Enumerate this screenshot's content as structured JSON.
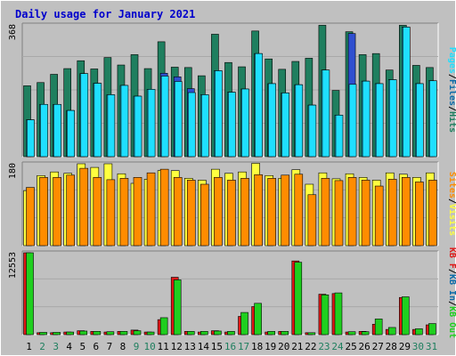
{
  "title": "Daily usage for January 2021",
  "colors": {
    "frame_bg": "#C0C0C0",
    "plot_bg": "#C0C0C0",
    "title": "#0000CC",
    "hits": "#1F7F5F",
    "files": "#1FDFFF",
    "pages": "#1FDFFF",
    "pages_dark": "#0A84B8",
    "visits": "#FFFF3F",
    "sites": "#FF8C00",
    "kb_in": "#1FCF1F",
    "kb_out": "#E01818",
    "axis_blue": "#0A6AA8",
    "axis_green": "#1F8F3F"
  },
  "chart_data": [
    {
      "type": "bar",
      "panel": "hits-files-pages",
      "ymax_label": "368",
      "ymax": 368,
      "ylabel_parts": [
        {
          "text": "Pages",
          "color": "#1FDFFF"
        },
        {
          "text": "/",
          "color": "#000000"
        },
        {
          "text": "Files",
          "color": "#0A6AA8"
        },
        {
          "text": "/",
          "color": "#000000"
        },
        {
          "text": "Hits",
          "color": "#1F7F5F"
        }
      ],
      "categories": [
        "1",
        "2",
        "3",
        "4",
        "5",
        "6",
        "7",
        "8",
        "9",
        "10",
        "11",
        "12",
        "13",
        "14",
        "15",
        "16",
        "17",
        "18",
        "19",
        "20",
        "21",
        "22",
        "23",
        "24",
        "25",
        "26",
        "27",
        "28",
        "29",
        "30",
        "31"
      ],
      "series": [
        {
          "name": "Hits",
          "values": [
            198,
            207,
            230,
            246,
            268,
            245,
            277,
            256,
            285,
            246,
            321,
            250,
            249,
            226,
            342,
            263,
            251,
            351,
            273,
            244,
            266,
            275,
            367,
            185,
            349,
            285,
            288,
            242,
            367,
            255,
            249
          ]
        },
        {
          "name": "Files",
          "values": [
            103,
            146,
            146,
            129,
            232,
            205,
            173,
            199,
            169,
            188,
            233,
            223,
            190,
            173,
            240,
            180,
            189,
            288,
            204,
            178,
            201,
            144,
            242,
            116,
            344,
            211,
            204,
            215,
            362,
            204,
            212
          ]
        },
        {
          "name": "Pages",
          "values": [
            103,
            146,
            146,
            129,
            232,
            205,
            173,
            199,
            169,
            188,
            225,
            210,
            179,
            173,
            240,
            180,
            189,
            288,
            204,
            178,
            201,
            144,
            242,
            116,
            202,
            211,
            204,
            215,
            362,
            204,
            212
          ]
        }
      ]
    },
    {
      "type": "bar",
      "panel": "visits-sites",
      "ymax_label": "180",
      "ymax": 180,
      "ylabel_parts": [
        {
          "text": "Sites",
          "color": "#FF8C00"
        },
        {
          "text": "/",
          "color": "#000000"
        },
        {
          "text": "Visits",
          "color": "#FFFF3F"
        }
      ],
      "categories": [
        "1",
        "2",
        "3",
        "4",
        "5",
        "6",
        "7",
        "8",
        "9",
        "10",
        "11",
        "12",
        "13",
        "14",
        "15",
        "16",
        "17",
        "18",
        "19",
        "20",
        "21",
        "22",
        "23",
        "24",
        "25",
        "26",
        "27",
        "28",
        "29",
        "30",
        "31"
      ],
      "series": [
        {
          "name": "Visits",
          "values": [
            121,
            154,
            162,
            159,
            180,
            172,
            180,
            158,
            137,
            146,
            165,
            165,
            148,
            144,
            168,
            159,
            162,
            181,
            154,
            148,
            167,
            135,
            160,
            147,
            158,
            150,
            144,
            160,
            157,
            150,
            160
          ]
        },
        {
          "name": "Sites",
          "values": [
            128,
            150,
            150,
            155,
            170,
            150,
            145,
            148,
            150,
            160,
            168,
            150,
            144,
            135,
            150,
            144,
            148,
            156,
            148,
            155,
            157,
            112,
            148,
            143,
            150,
            144,
            131,
            146,
            150,
            140,
            144
          ]
        }
      ]
    },
    {
      "type": "bar",
      "panel": "kbin-kbout",
      "ymax_label": "12553",
      "ymax": 12553,
      "ylabel_parts": [
        {
          "text": "KB F",
          "color": "#E01818"
        },
        {
          "text": "/",
          "color": "#000000"
        },
        {
          "text": "KB In",
          "color": "#0A6AA8"
        },
        {
          "text": "/",
          "color": "#000000"
        },
        {
          "text": "KB Out",
          "color": "#1FCF1F"
        }
      ],
      "categories": [
        "1",
        "2",
        "3",
        "4",
        "5",
        "6",
        "7",
        "8",
        "9",
        "10",
        "11",
        "12",
        "13",
        "14",
        "15",
        "16",
        "17",
        "18",
        "19",
        "20",
        "21",
        "22",
        "23",
        "24",
        "25",
        "26",
        "27",
        "28",
        "29",
        "30",
        "31"
      ],
      "series": [
        {
          "name": "KB F",
          "values": [
            12553,
            300,
            300,
            400,
            600,
            500,
            400,
            500,
            700,
            400,
            2300,
            8800,
            500,
            400,
            600,
            400,
            2800,
            4300,
            400,
            500,
            11300,
            300,
            6200,
            6300,
            400,
            500,
            1600,
            800,
            5700,
            800,
            1500
          ]
        },
        {
          "name": "KB In",
          "values": [
            12553,
            350,
            350,
            400,
            550,
            500,
            450,
            500,
            600,
            400,
            2600,
            8400,
            500,
            500,
            550,
            500,
            3400,
            4800,
            500,
            500,
            11100,
            300,
            6100,
            6400,
            450,
            450,
            2400,
            1100,
            5800,
            900,
            1700
          ]
        }
      ]
    }
  ],
  "day_label_colors": [
    "#000000",
    "#1F7F5F",
    "#1F7F5F",
    "#000000",
    "#000000",
    "#000000",
    "#000000",
    "#000000",
    "#1F7F5F",
    "#1F7F5F",
    "#000000",
    "#000000",
    "#000000",
    "#000000",
    "#000000",
    "#1F7F5F",
    "#1F7F5F",
    "#000000",
    "#000000",
    "#000000",
    "#000000",
    "#000000",
    "#1F7F5F",
    "#1F7F5F",
    "#000000",
    "#000000",
    "#000000",
    "#000000",
    "#000000",
    "#1F7F5F",
    "#1F7F5F"
  ]
}
